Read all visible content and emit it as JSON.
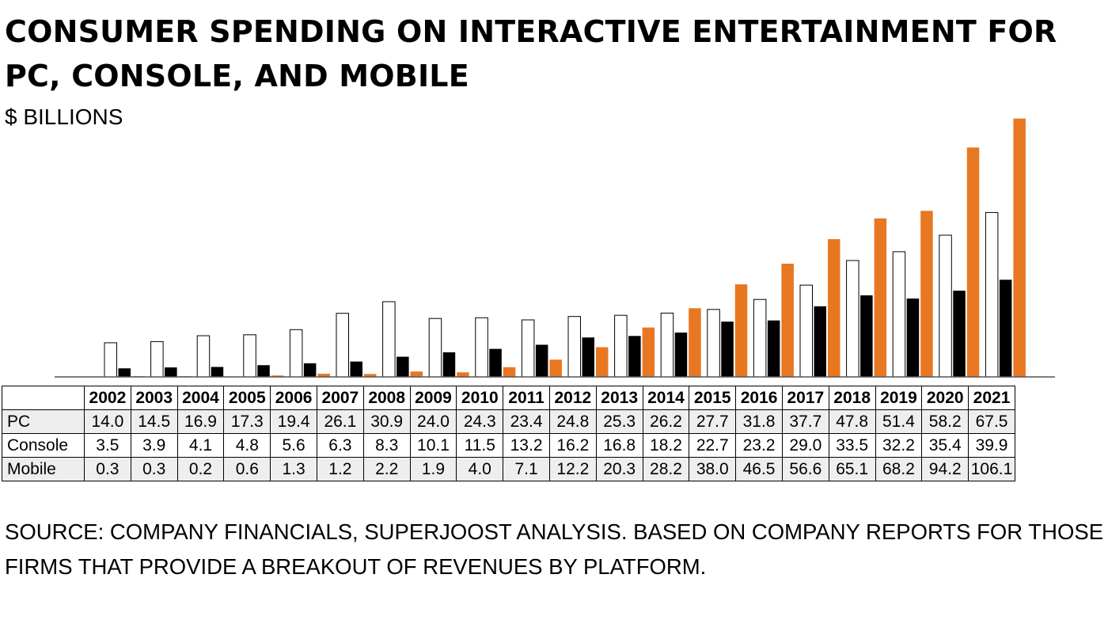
{
  "title": "CONSUMER SPENDING ON INTERACTIVE ENTERTAINMENT FOR PC, CONSOLE, AND MOBILE",
  "subtitle": "$ BILLIONS",
  "source": "SOURCE: COMPANY FINANCIALS, SUPERJOOST ANALYSIS. BASED ON COMPANY REPORTS FOR THOSE FIRMS THAT PROVIDE A BREAKOUT OF REVENUES BY PLATFORM.",
  "chart_data": {
    "type": "bar",
    "title": "CONSUMER SPENDING ON INTERACTIVE ENTERTAINMENT FOR PC, CONSOLE, AND MOBILE",
    "ylabel": "$ BILLIONS",
    "ylim": [
      0,
      110
    ],
    "grid": false,
    "legend": "data table below chart",
    "categories": [
      "2002",
      "2003",
      "2004",
      "2005",
      "2006",
      "2007",
      "2008",
      "2009",
      "2010",
      "2011",
      "2012",
      "2013",
      "2014",
      "2015",
      "2016",
      "2017",
      "2018",
      "2019",
      "2020",
      "2021"
    ],
    "series": [
      {
        "name": "PC",
        "color": "#ffffff",
        "values": [
          14.0,
          14.5,
          16.9,
          17.3,
          19.4,
          26.1,
          30.9,
          24.0,
          24.3,
          23.4,
          24.8,
          25.3,
          26.2,
          27.7,
          31.8,
          37.7,
          47.8,
          51.4,
          58.2,
          67.5
        ]
      },
      {
        "name": "Console",
        "color": "#000000",
        "values": [
          3.5,
          3.9,
          4.1,
          4.8,
          5.6,
          6.3,
          8.3,
          10.1,
          11.5,
          13.2,
          16.2,
          16.8,
          18.2,
          22.7,
          23.2,
          29.0,
          33.5,
          32.2,
          35.4,
          39.9
        ]
      },
      {
        "name": "Mobile",
        "color": "#e87722",
        "values": [
          0.3,
          0.3,
          0.2,
          0.6,
          1.3,
          1.2,
          2.2,
          1.9,
          4.0,
          7.1,
          12.2,
          20.3,
          28.2,
          38.0,
          46.5,
          56.6,
          65.1,
          68.2,
          94.2,
          106.1
        ]
      }
    ],
    "table_values": {
      "PC": [
        "14.0",
        "14.5",
        "16.9",
        "17.3",
        "19.4",
        "26.1",
        "30.9",
        "24.0",
        "24.3",
        "23.4",
        "24.8",
        "25.3",
        "26.2",
        "27.7",
        "31.8",
        "37.7",
        "47.8",
        "51.4",
        "58.2",
        "67.5"
      ],
      "Console": [
        "3.5",
        "3.9",
        "4.1",
        "4.8",
        "5.6",
        "6.3",
        "8.3",
        "10.1",
        "11.5",
        "13.2",
        "16.2",
        "16.8",
        "18.2",
        "22.7",
        "23.2",
        "29.0",
        "33.5",
        "32.2",
        "35.4",
        "39.9"
      ],
      "Mobile": [
        "0.3",
        "0.3",
        "0.2",
        "0.6",
        "1.3",
        "1.2",
        "2.2",
        "1.9",
        "4.0",
        "7.1",
        "12.2",
        "20.3",
        "28.2",
        "38.0",
        "46.5",
        "56.6",
        "65.1",
        "68.2",
        "94.2",
        "106.1"
      ]
    }
  }
}
